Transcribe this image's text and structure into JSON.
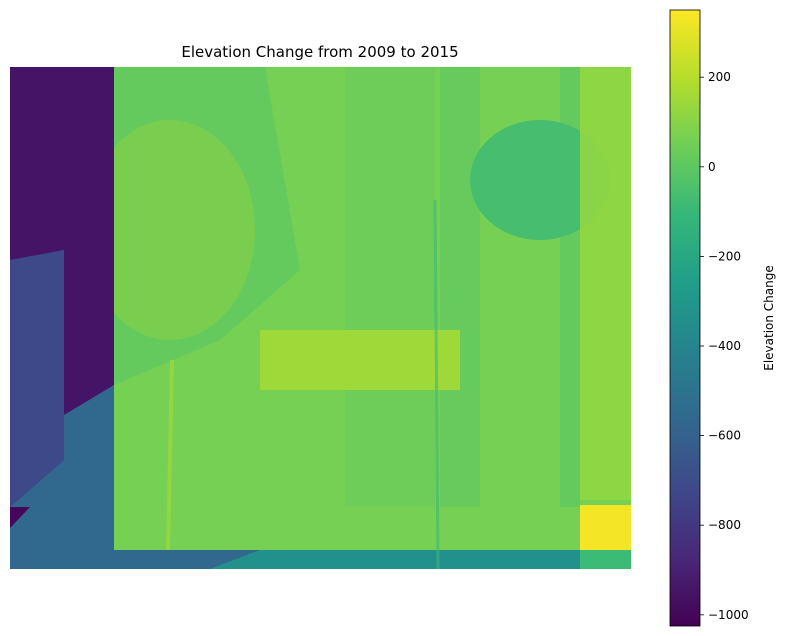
{
  "chart_data": {
    "type": "heatmap",
    "title": "Elevation Change from 2009 to 2015",
    "xlabel": "",
    "ylabel": "",
    "axes_visible": false,
    "colormap": "viridis",
    "colorbar": {
      "label": "Elevation Change",
      "range": [
        -1025,
        350
      ],
      "ticks": [
        200,
        0,
        -200,
        -400,
        -600,
        -800,
        -1000
      ],
      "tick_labels": [
        "200",
        "0",
        "−200",
        "−400",
        "−600",
        "−800",
        "−1000"
      ],
      "position": "right"
    },
    "regions": [
      {
        "name": "left-strip",
        "value": -950
      },
      {
        "name": "left-lower-diagonal",
        "value": -720
      },
      {
        "name": "bottom-left-corner",
        "value": -1000
      },
      {
        "name": "bottom-band",
        "value": -560
      },
      {
        "name": "bottom-band-middle",
        "value": -330
      },
      {
        "name": "bottom-right-corner-bright",
        "value": 330
      },
      {
        "name": "main-field",
        "value": 60
      },
      {
        "name": "upper-left-plume",
        "value": 160
      },
      {
        "name": "central-ridge",
        "value": 150
      },
      {
        "name": "right-edge-band",
        "value": 120
      },
      {
        "name": "upper-right-cool-patch",
        "value": -60
      }
    ]
  }
}
